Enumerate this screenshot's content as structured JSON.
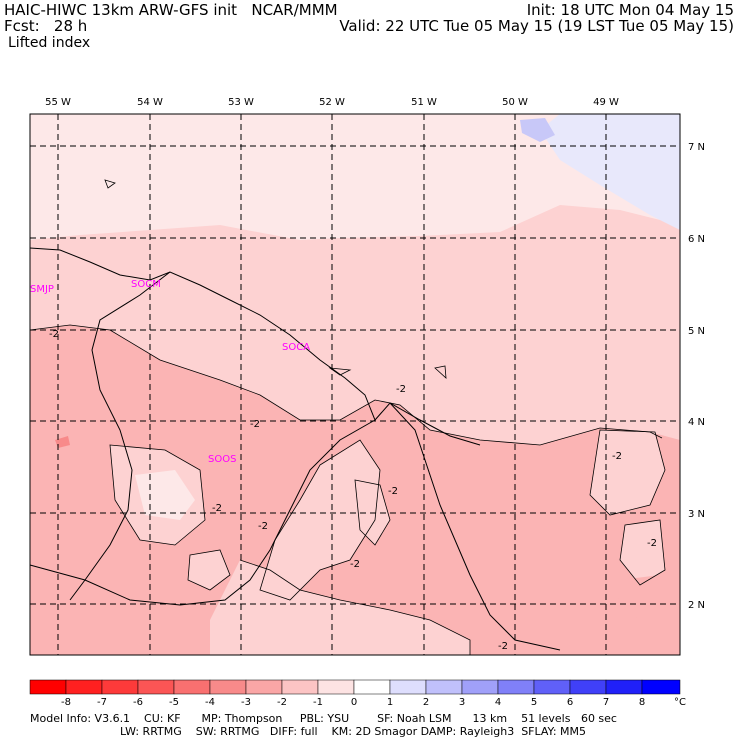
{
  "header": {
    "model_line": "HAIC-HIWC 13km ARW-GFS init   NCAR/MMM",
    "forecast_line": "Fcst:   28 h",
    "field_name": "Lifted index",
    "init_line": "Init: 18 UTC Mon 04 May 15",
    "valid_line": "Valid: 22 UTC Tue 05 May 15 (19 LST Tue 05 May 15)"
  },
  "map": {
    "longitude_labels": [
      "55 W",
      "54 W",
      "53 W",
      "52 W",
      "51 W",
      "50 W",
      "49 W"
    ],
    "latitude_labels": [
      "7 N",
      "6 N",
      "5 N",
      "4 N",
      "3 N",
      "2 N"
    ],
    "station_labels": [
      "SMJP",
      "SOCM",
      "SOCA",
      "SOOS"
    ],
    "contour_labels": [
      "-2",
      "-2",
      "-2",
      "-2",
      "-2",
      "-2",
      "-2",
      "-2",
      "-2",
      "-2"
    ],
    "colors": {
      "land_light": "#fdd2d2",
      "land_mid": "#fbb4b4",
      "ocean_faint": "#fde8e8",
      "positive_1": "#e8e8fb",
      "positive_2": "#c8c8f8"
    }
  },
  "colorbar": {
    "tick_labels": [
      "-8",
      "-7",
      "-6",
      "-5",
      "-4",
      "-3",
      "-2",
      "-1",
      "0",
      "1",
      "2",
      "3",
      "4",
      "5",
      "6",
      "7",
      "8"
    ],
    "unit": "°C",
    "colors": [
      "#ff0000",
      "#ff2020",
      "#fd3a3a",
      "#fb5555",
      "#f97070",
      "#f88a8a",
      "#faa6a6",
      "#fcc4c4",
      "#fde3e3",
      "#ffffff",
      "#dedefd",
      "#c0c0fb",
      "#a0a0f9",
      "#8080f8",
      "#6060f8",
      "#4040f8",
      "#2020f8",
      "#0000ff"
    ]
  },
  "footer": {
    "line1": "Model Info: V3.6.1    CU: KF      MP: Thompson     PBL: YSU        SF: Noah LSM      13 km    51 levels   60 sec",
    "line2": "LW: RRTMG    SW: RRTMG   DIFF: full    KM: 2D Smagor DAMP: Rayleigh3  SFLAY: MM5"
  }
}
